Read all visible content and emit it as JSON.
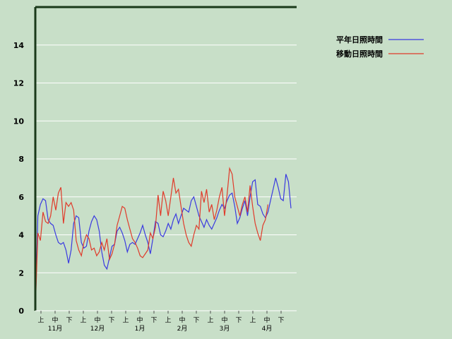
{
  "chart_data": {
    "type": "line",
    "title": "",
    "ylim": [
      0,
      16
    ],
    "yticks": [
      0,
      2,
      4,
      6,
      8,
      10,
      12,
      14
    ],
    "grid": true,
    "legend_position": "top-right",
    "x_period_labels": [
      "上",
      "中",
      "下",
      "上",
      "中",
      "下",
      "上",
      "中",
      "下",
      "上",
      "中",
      "下",
      "上",
      "中",
      "下",
      "上",
      "中",
      "下"
    ],
    "x_month_labels": [
      "11月",
      "12月",
      "1月",
      "2月",
      "3月",
      "4月"
    ],
    "colors": {
      "background": "#c8dfc8",
      "frame": "#1a3a1a",
      "grid": "#ffffff",
      "normal": "#3a3ae0",
      "moving": "#e03a2a"
    },
    "series": [
      {
        "name": "平年日照時間",
        "color": "#3a3ae0",
        "values": [
          0,
          5.0,
          5.6,
          5.9,
          5.8,
          4.8,
          4.6,
          4.5,
          4.0,
          3.6,
          3.5,
          3.6,
          3.2,
          2.5,
          3.2,
          4.6,
          5.0,
          4.9,
          3.6,
          3.3,
          3.4,
          4.2,
          4.7,
          5.0,
          4.8,
          4.2,
          3.1,
          2.4,
          2.2,
          2.8,
          3.4,
          3.5,
          4.2,
          4.4,
          4.1,
          3.7,
          3.1,
          3.5,
          3.6,
          3.5,
          3.8,
          4.1,
          4.5,
          4.0,
          3.6,
          3.0,
          3.8,
          4.7,
          4.6,
          4.0,
          3.9,
          4.2,
          4.6,
          4.3,
          4.8,
          5.1,
          4.6,
          5.0,
          5.4,
          5.3,
          5.2,
          5.8,
          6.0,
          5.5,
          5.0,
          4.7,
          4.4,
          4.8,
          4.5,
          4.3,
          4.6,
          4.9,
          5.3,
          5.6,
          5.4,
          5.8,
          6.1,
          6.2,
          5.5,
          4.6,
          4.9,
          5.4,
          5.8,
          5.0,
          6.0,
          6.8,
          6.9,
          5.6,
          5.5,
          5.1,
          4.9,
          5.2,
          5.8,
          6.4,
          7.0,
          6.5,
          5.9,
          5.8,
          7.2,
          6.8,
          5.4
        ]
      },
      {
        "name": "移動日照時間",
        "color": "#e03a2a",
        "values": [
          0,
          4.1,
          3.7,
          5.2,
          4.7,
          4.6,
          5.0,
          6.0,
          5.3,
          6.2,
          6.5,
          4.6,
          5.7,
          5.5,
          5.7,
          5.3,
          3.7,
          3.2,
          2.9,
          3.6,
          4.0,
          3.8,
          3.2,
          3.3,
          2.9,
          3.1,
          3.6,
          3.2,
          3.8,
          2.7,
          3.0,
          3.5,
          4.5,
          5.0,
          5.5,
          5.4,
          4.8,
          4.3,
          3.8,
          3.6,
          3.3,
          2.9,
          2.8,
          3.0,
          3.2,
          4.1,
          3.8,
          4.4,
          6.1,
          5.0,
          6.3,
          5.8,
          5.0,
          6.0,
          7.0,
          6.2,
          6.4,
          5.5,
          4.6,
          4.0,
          3.6,
          3.4,
          4.0,
          4.5,
          4.3,
          6.3,
          5.7,
          6.4,
          5.2,
          5.6,
          4.8,
          5.3,
          6.0,
          6.5,
          5.0,
          6.1,
          7.5,
          7.2,
          6.0,
          5.5,
          5.0,
          5.6,
          6.0,
          5.2,
          6.6,
          5.5,
          4.6,
          4.1,
          3.7,
          4.5,
          4.8,
          5.6
        ]
      }
    ]
  }
}
